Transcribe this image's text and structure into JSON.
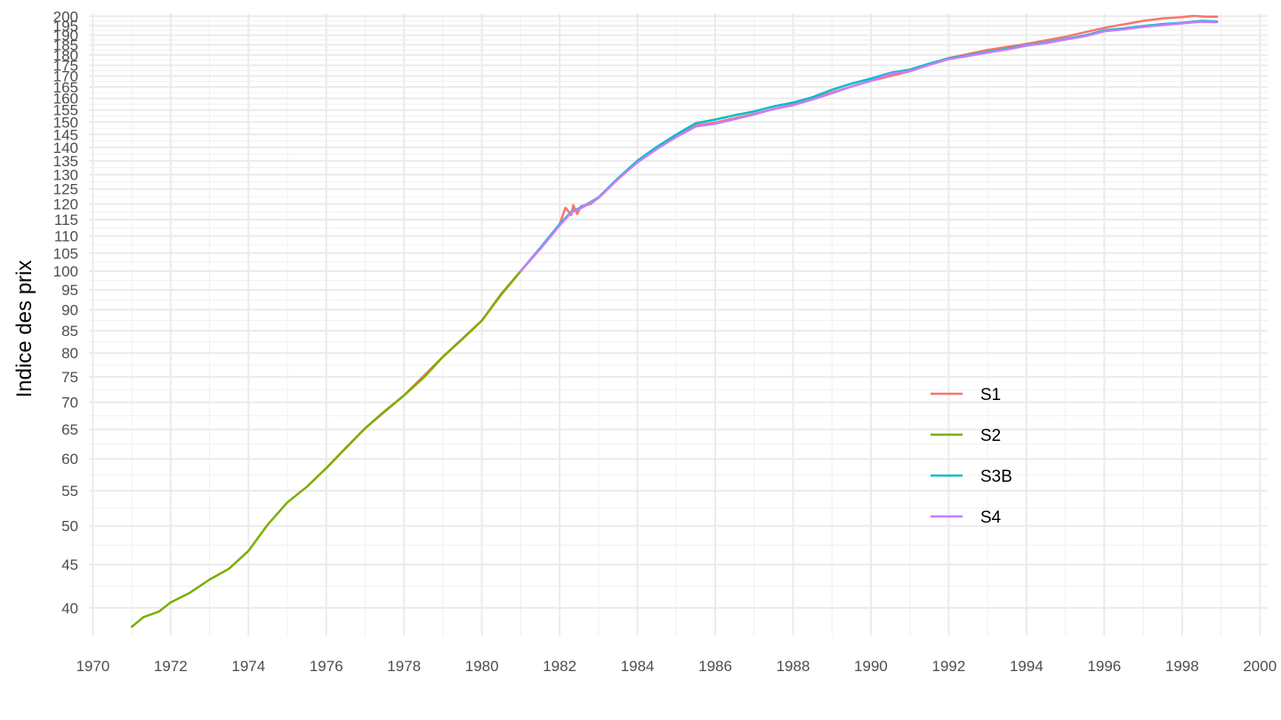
{
  "chart_data": {
    "type": "line",
    "title": "",
    "xlabel": "",
    "ylabel": "Indice des prix",
    "y_scale": "log",
    "xlim": [
      1969.9,
      2000.2
    ],
    "ylim": [
      37.1,
      201.6
    ],
    "x_ticks": [
      1970,
      1972,
      1974,
      1976,
      1978,
      1980,
      1982,
      1984,
      1986,
      1988,
      1990,
      1992,
      1994,
      1996,
      1998,
      2000
    ],
    "x_tick_labels": [
      "1970",
      "1972",
      "1974",
      "1976",
      "1978",
      "1980",
      "1982",
      "1984",
      "1986",
      "1988",
      "1990",
      "1992",
      "1994",
      "1996",
      "1998",
      "2000"
    ],
    "y_ticks": [
      40,
      45,
      50,
      55,
      60,
      65,
      70,
      75,
      80,
      85,
      90,
      95,
      100,
      105,
      110,
      115,
      120,
      125,
      130,
      135,
      140,
      145,
      150,
      155,
      160,
      165,
      170,
      175,
      180,
      185,
      190,
      195,
      200
    ],
    "y_tick_labels": [
      "40",
      "45",
      "50",
      "55",
      "60",
      "65",
      "70",
      "75",
      "80",
      "85",
      "90",
      "95",
      "100",
      "105",
      "110",
      "115",
      "120",
      "125",
      "130",
      "135",
      "140",
      "145",
      "150",
      "155",
      "160",
      "165",
      "170",
      "175",
      "180",
      "185",
      "190",
      "195",
      "200"
    ],
    "grid": true,
    "legend_position": "right",
    "series": [
      {
        "name": "S1",
        "color": "#F8766D",
        "points": [
          [
            1976.0,
            58.5
          ],
          [
            1977.0,
            65.2
          ],
          [
            1978.0,
            71.3
          ],
          [
            1979.0,
            79.2
          ],
          [
            1980.0,
            87.4
          ],
          [
            1980.5,
            94.0
          ],
          [
            1981.0,
            100.0
          ],
          [
            1981.5,
            106.5
          ],
          [
            1982.0,
            113.6
          ],
          [
            1982.15,
            118.8
          ],
          [
            1982.3,
            116.5
          ],
          [
            1982.35,
            119.6
          ],
          [
            1982.45,
            116.8
          ],
          [
            1982.55,
            119.3
          ],
          [
            1982.8,
            120.0
          ],
          [
            1983.0,
            122.2
          ],
          [
            1983.5,
            128.7
          ],
          [
            1984.0,
            134.8
          ],
          [
            1984.5,
            139.7
          ],
          [
            1985.0,
            144.3
          ],
          [
            1985.5,
            148.6
          ],
          [
            1986.0,
            149.8
          ],
          [
            1987.0,
            153.4
          ],
          [
            1988.0,
            157.3
          ],
          [
            1989.0,
            162.6
          ],
          [
            1990.0,
            167.8
          ],
          [
            1991.0,
            172.2
          ],
          [
            1992.0,
            178.5
          ],
          [
            1993.0,
            182.5
          ],
          [
            1994.0,
            185.5
          ],
          [
            1995.0,
            189.2
          ],
          [
            1996.0,
            193.8
          ],
          [
            1997.0,
            197.5
          ],
          [
            1997.5,
            198.8
          ],
          [
            1998.0,
            199.5
          ],
          [
            1998.3,
            200.2
          ],
          [
            1998.6,
            199.8
          ],
          [
            1998.9,
            199.8
          ]
        ]
      },
      {
        "name": "S2",
        "color": "#7CAE00",
        "points": [
          [
            1971.0,
            38.0
          ],
          [
            1971.3,
            39.0
          ],
          [
            1971.7,
            39.6
          ],
          [
            1972.0,
            40.6
          ],
          [
            1972.5,
            41.7
          ],
          [
            1973.0,
            43.2
          ],
          [
            1973.5,
            44.5
          ],
          [
            1974.0,
            46.7
          ],
          [
            1974.5,
            50.2
          ],
          [
            1975.0,
            53.3
          ],
          [
            1975.5,
            55.6
          ],
          [
            1976.0,
            58.5
          ],
          [
            1976.5,
            61.8
          ],
          [
            1977.0,
            65.2
          ],
          [
            1977.5,
            68.3
          ],
          [
            1978.0,
            71.3
          ],
          [
            1978.5,
            74.8
          ],
          [
            1979.0,
            79.2
          ],
          [
            1979.5,
            83.1
          ],
          [
            1980.0,
            87.4
          ],
          [
            1980.5,
            93.8
          ],
          [
            1981.0,
            100.0
          ]
        ]
      },
      {
        "name": "S3B",
        "color": "#00BFC4",
        "points": [
          [
            1981.0,
            100.0
          ],
          [
            1981.5,
            106.5
          ],
          [
            1982.0,
            113.6
          ],
          [
            1982.3,
            117.5
          ],
          [
            1982.6,
            119.2
          ],
          [
            1983.0,
            122.2
          ],
          [
            1983.5,
            128.7
          ],
          [
            1984.0,
            135.0
          ],
          [
            1984.5,
            140.2
          ],
          [
            1985.0,
            145.0
          ],
          [
            1985.5,
            149.5
          ],
          [
            1986.0,
            151.0
          ],
          [
            1986.5,
            152.8
          ],
          [
            1987.0,
            154.4
          ],
          [
            1987.5,
            156.5
          ],
          [
            1988.0,
            158.2
          ],
          [
            1988.5,
            160.5
          ],
          [
            1989.0,
            163.8
          ],
          [
            1989.5,
            166.5
          ],
          [
            1990.0,
            168.8
          ],
          [
            1990.5,
            171.5
          ],
          [
            1991.0,
            173.0
          ],
          [
            1991.5,
            175.8
          ],
          [
            1992.0,
            178.4
          ],
          [
            1992.5,
            179.8
          ],
          [
            1993.0,
            181.6
          ],
          [
            1993.5,
            183.0
          ],
          [
            1994.0,
            184.9
          ],
          [
            1994.5,
            186.2
          ],
          [
            1995.0,
            188.0
          ],
          [
            1995.5,
            189.8
          ],
          [
            1996.0,
            192.5
          ],
          [
            1996.5,
            193.5
          ],
          [
            1997.0,
            194.8
          ],
          [
            1997.5,
            195.8
          ],
          [
            1998.0,
            196.5
          ],
          [
            1998.5,
            197.5
          ],
          [
            1998.9,
            197.2
          ]
        ]
      },
      {
        "name": "S4",
        "color": "#C77CFF",
        "points": [
          [
            1981.0,
            100.0
          ],
          [
            1981.5,
            106.2
          ],
          [
            1982.0,
            113.2
          ],
          [
            1982.3,
            117.3
          ],
          [
            1982.6,
            119.0
          ],
          [
            1983.0,
            122.0
          ],
          [
            1983.5,
            128.4
          ],
          [
            1984.0,
            134.4
          ],
          [
            1984.5,
            139.4
          ],
          [
            1985.0,
            144.0
          ],
          [
            1985.5,
            148.2
          ],
          [
            1986.0,
            149.3
          ],
          [
            1986.5,
            151.2
          ],
          [
            1987.0,
            153.1
          ],
          [
            1987.5,
            155.4
          ],
          [
            1988.0,
            157.0
          ],
          [
            1988.5,
            159.5
          ],
          [
            1989.0,
            162.2
          ],
          [
            1989.5,
            165.2
          ],
          [
            1990.0,
            167.8
          ],
          [
            1990.5,
            171.0
          ],
          [
            1991.0,
            172.3
          ],
          [
            1991.5,
            175.2
          ],
          [
            1992.0,
            178.0
          ],
          [
            1992.5,
            179.5
          ],
          [
            1993.0,
            181.2
          ],
          [
            1993.5,
            182.7
          ],
          [
            1994.0,
            184.6
          ],
          [
            1994.5,
            185.9
          ],
          [
            1995.0,
            187.7
          ],
          [
            1995.5,
            189.4
          ],
          [
            1996.0,
            192.0
          ],
          [
            1996.5,
            193.0
          ],
          [
            1997.0,
            194.3
          ],
          [
            1997.5,
            195.2
          ],
          [
            1998.0,
            196.2
          ],
          [
            1998.5,
            197.0
          ],
          [
            1998.9,
            196.8
          ]
        ]
      }
    ]
  }
}
